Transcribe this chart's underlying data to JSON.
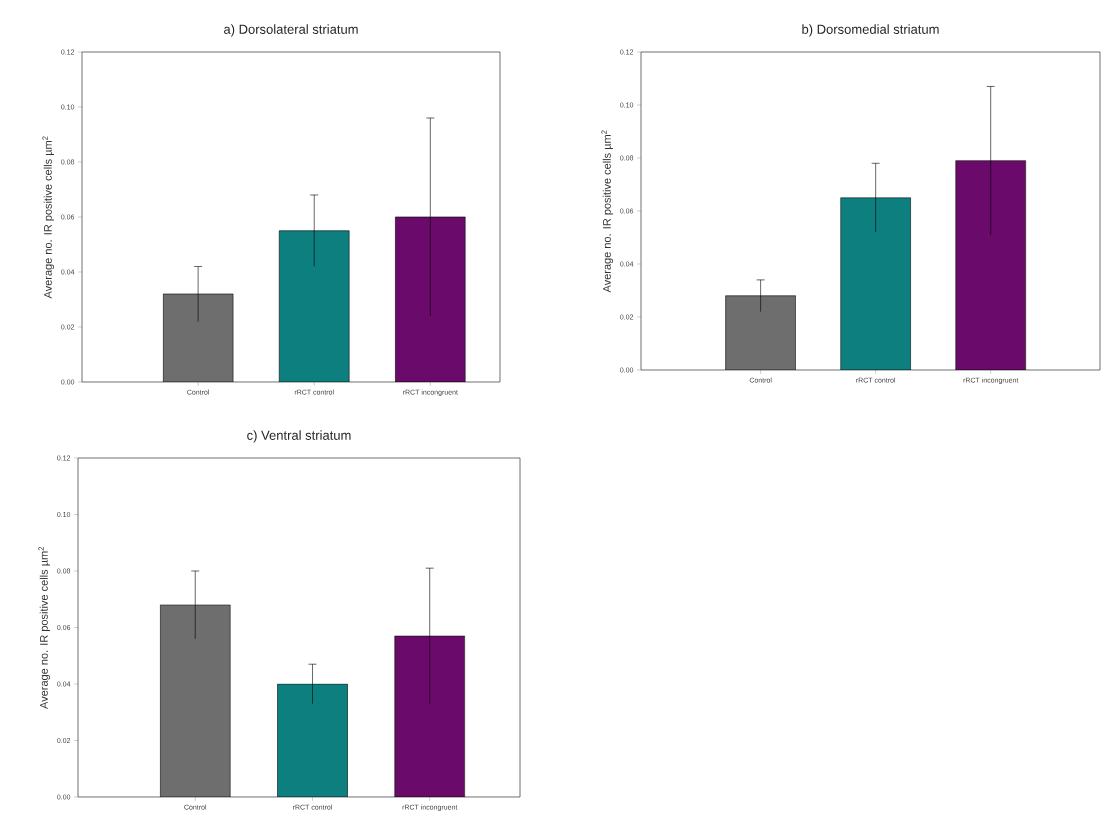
{
  "chart_data": [
    {
      "type": "bar",
      "title": "a) Dorsolateral striatum",
      "ylabel": "Average no. IR positive cells µm$^{2}$",
      "categories": [
        "Control",
        "rRCT control",
        "rRCT incongruent"
      ],
      "values": [
        0.032,
        0.055,
        0.06
      ],
      "colors": [
        "#6e6e6e",
        "#0e7f7f",
        "#6a0a6a"
      ],
      "errors": [
        0.01,
        0.013,
        0.036
      ],
      "ylim": [
        0,
        0.12
      ],
      "yticks": [
        {
          "value": 0,
          "label": "0.00"
        },
        {
          "value": 0.02,
          "label": "0.02"
        },
        {
          "value": 0.04,
          "label": "0.04"
        },
        {
          "value": 0.06,
          "label": "0.06"
        },
        {
          "value": 0.08,
          "label": "0.08"
        },
        {
          "value": 0.1,
          "label": "0.10"
        },
        {
          "value": 0.12,
          "label": "0.12"
        }
      ]
    },
    {
      "type": "bar",
      "title": "b) Dorsomedial striatum",
      "ylabel": "Average no. IR positive cells µm$^{2}$",
      "categories": [
        "Control",
        "rRCT control",
        "rRCT incongruent"
      ],
      "values": [
        0.028,
        0.065,
        0.079
      ],
      "colors": [
        "#6e6e6e",
        "#0e7f7f",
        "#6a0a6a"
      ],
      "errors": [
        0.006,
        0.013,
        0.028
      ],
      "ylim": [
        0,
        0.12
      ],
      "yticks": [
        {
          "value": 0,
          "label": "0.00"
        },
        {
          "value": 0.02,
          "label": "0.02"
        },
        {
          "value": 0.04,
          "label": "0.04"
        },
        {
          "value": 0.06,
          "label": "0.06"
        },
        {
          "value": 0.08,
          "label": "0.08"
        },
        {
          "value": 0.1,
          "label": "0.10"
        },
        {
          "value": 0.12,
          "label": "0.12"
        }
      ]
    },
    {
      "type": "bar",
      "title": "c) Ventral striatum",
      "ylabel": "Average no. IR positive cells µm$^{2}$",
      "categories": [
        "Control",
        "rRCT control",
        "rRCT incongruent"
      ],
      "values": [
        0.068,
        0.04,
        0.057
      ],
      "colors": [
        "#6e6e6e",
        "#0e7f7f",
        "#6a0a6a"
      ],
      "errors": [
        0.012,
        0.007,
        0.024
      ],
      "ylim": [
        0,
        0.12
      ],
      "yticks": [
        {
          "value": 0,
          "label": "0.00"
        },
        {
          "value": 0.02,
          "label": "0.02"
        },
        {
          "value": 0.04,
          "label": "0.04"
        },
        {
          "value": 0.06,
          "label": "0.06"
        },
        {
          "value": 0.08,
          "label": "0.08"
        },
        {
          "value": 0.1,
          "label": "0.10"
        },
        {
          "value": 0.12,
          "label": "0.12"
        }
      ]
    }
  ]
}
